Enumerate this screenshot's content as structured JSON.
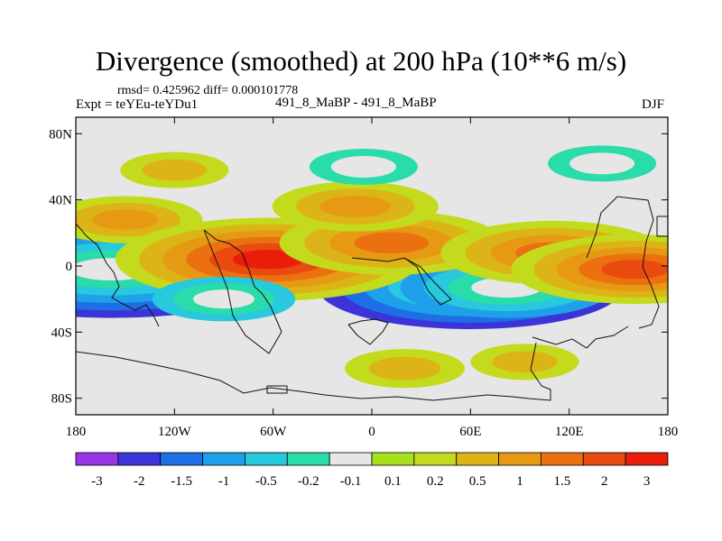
{
  "title": "Divergence (smoothed) at 200 hPa (10**6 m/s)",
  "stats_line": "rmsd= 0.425962 diff= 0.000101778",
  "experiment_label": "Expt = teYEu-teYDu1",
  "case_label": "491_8_MaBP - 491_8_MaBP",
  "season_label": "DJF",
  "map": {
    "projection": "cylindrical equidistant",
    "lon_range": [
      -180,
      180
    ],
    "lat_range": [
      -90,
      90
    ],
    "lat_ticks": [
      {
        "value": 80,
        "label": "80N"
      },
      {
        "value": 40,
        "label": "40N"
      },
      {
        "value": 0,
        "label": "0"
      },
      {
        "value": -40,
        "label": "40S"
      },
      {
        "value": -80,
        "label": "80S"
      }
    ],
    "lon_ticks": [
      {
        "value": -180,
        "label": "180"
      },
      {
        "value": -120,
        "label": "120W"
      },
      {
        "value": -60,
        "label": "60W"
      },
      {
        "value": 0,
        "label": "0"
      },
      {
        "value": 60,
        "label": "60E"
      },
      {
        "value": 120,
        "label": "120E"
      },
      {
        "value": 180,
        "label": "180"
      }
    ],
    "background_color": "#e6e6e6"
  },
  "colorbar": {
    "levels": [
      "-3",
      "-2",
      "-1.5",
      "-1",
      "-0.5",
      "-0.2",
      "-0.1",
      "0.1",
      "0.2",
      "0.5",
      "1",
      "1.5",
      "2",
      "3"
    ],
    "colors": [
      "#9a35e6",
      "#3c34d8",
      "#1e6fe6",
      "#1ea0ea",
      "#28c8de",
      "#2adcaa",
      "#e6e6e6",
      "#a8e01e",
      "#c4da1c",
      "#dcb418",
      "#e69a14",
      "#ea7010",
      "#e84a10",
      "#e81e0a"
    ]
  },
  "chart_data": {
    "type": "filled-contour-map",
    "variable": "Divergence (smoothed) at 200 hPa",
    "units": "10**6 m/s",
    "contour_levels": [
      -3,
      -2,
      -1.5,
      -1,
      -0.5,
      -0.2,
      -0.1,
      0.1,
      0.2,
      0.5,
      1,
      1.5,
      2,
      3
    ],
    "features": [
      {
        "lon": -158,
        "lat": -2,
        "value": -2.5
      },
      {
        "lon": 60,
        "lat": -13,
        "value": -2.0
      },
      {
        "lon": 150,
        "lat": -3,
        "value": -1.2
      },
      {
        "lon": 82,
        "lat": -13,
        "value": -1.2
      },
      {
        "lon": -150,
        "lat": 28,
        "value": 0.7
      },
      {
        "lon": -63,
        "lat": 4,
        "value": 2.0
      },
      {
        "lon": 12,
        "lat": 14,
        "value": 1.3
      },
      {
        "lon": 110,
        "lat": 8,
        "value": 1.3
      },
      {
        "lon": 160,
        "lat": -2,
        "value": 1.5
      },
      {
        "lon": -10,
        "lat": 36,
        "value": 0.8
      },
      {
        "lon": -120,
        "lat": 58,
        "value": 0.3
      },
      {
        "lon": 20,
        "lat": -62,
        "value": 0.4
      },
      {
        "lon": 93,
        "lat": -58,
        "value": 0.3
      },
      {
        "lon": -90,
        "lat": -20,
        "value": -0.6
      },
      {
        "lon": 140,
        "lat": 62,
        "value": -0.3
      },
      {
        "lon": -5,
        "lat": 60,
        "value": -0.3
      }
    ]
  }
}
